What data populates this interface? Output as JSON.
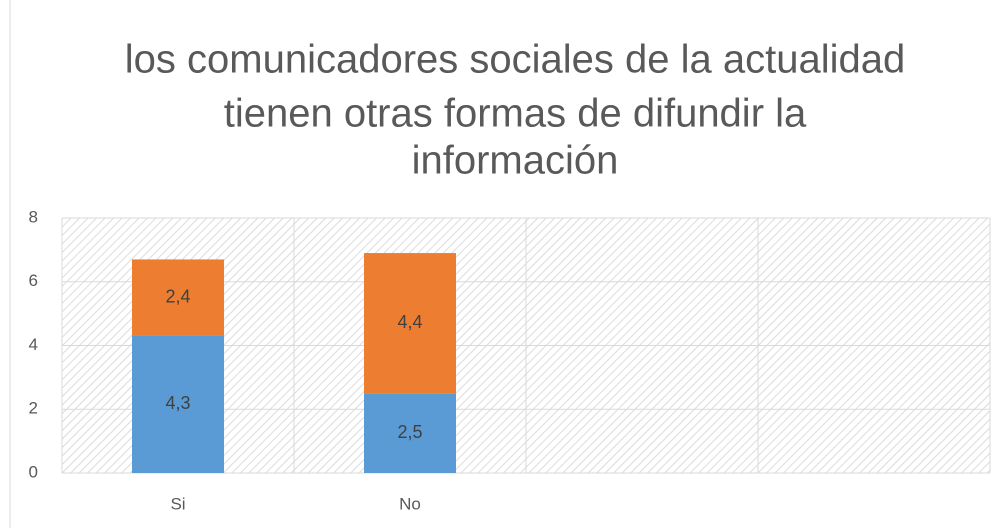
{
  "chart_data": {
    "type": "stacked_bar",
    "title": [
      "los comunicadores sociales de la actualidad",
      "tienen otras formas de difundir la",
      "información"
    ],
    "categories": [
      "Si",
      "No",
      null,
      null
    ],
    "series": [
      {
        "color": "#5b9bd5",
        "values": [
          4.3,
          2.5,
          null,
          null
        ],
        "value_labels": [
          "4,3",
          "2,5",
          null,
          null
        ]
      },
      {
        "color": "#ed7d31",
        "values": [
          2.4,
          4.4,
          null,
          null
        ],
        "value_labels": [
          "2,4",
          "4,4",
          null,
          null
        ]
      }
    ],
    "ylim": [
      0,
      8
    ],
    "yticks": [
      0,
      2,
      4,
      6,
      8
    ],
    "grid": true
  }
}
